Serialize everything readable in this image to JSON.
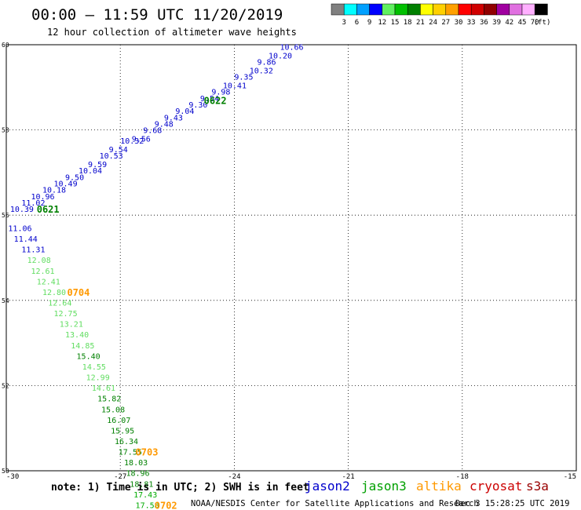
{
  "header": {
    "title": "00:00 — 11:59 UTC 11/20/2019",
    "subtitle": "12 hour collection of altimeter wave heights"
  },
  "colorbar": {
    "unit_label": "(ft)",
    "bins": [
      {
        "label": "3",
        "color": "#808080"
      },
      {
        "label": "6",
        "color": "#00ffff"
      },
      {
        "label": "9",
        "color": "#00a0ff"
      },
      {
        "label": "12",
        "color": "#0000ff"
      },
      {
        "label": "15",
        "color": "#60f060"
      },
      {
        "label": "18",
        "color": "#00c000"
      },
      {
        "label": "21",
        "color": "#008000"
      },
      {
        "label": "24",
        "color": "#ffff00"
      },
      {
        "label": "27",
        "color": "#ffd000"
      },
      {
        "label": "30",
        "color": "#ffa000"
      },
      {
        "label": "33",
        "color": "#ff0000"
      },
      {
        "label": "36",
        "color": "#d00000"
      },
      {
        "label": "39",
        "color": "#900000"
      },
      {
        "label": "42",
        "color": "#a000a0"
      },
      {
        "label": "45",
        "color": "#e070e0"
      },
      {
        "label": "70",
        "color": "#ffb0ff"
      },
      {
        "label": "",
        "color": "#000000"
      }
    ]
  },
  "footer": {
    "note": "note: 1) Time is in UTC; 2) SWH is in feet",
    "credit": "NOAA/NESDIS Center for Satellite Applications and Research",
    "timestamp": "Dec  3 15:28:25 UTC 2019",
    "legend": [
      {
        "name": "jason2",
        "color": "#0000cc"
      },
      {
        "name": "jason3",
        "color": "#00a000"
      },
      {
        "name": "altika",
        "color": "#ff9900"
      },
      {
        "name": "cryosat",
        "color": "#cc0000"
      },
      {
        "name": "s3a",
        "color": "#990000"
      }
    ]
  },
  "chart_data": {
    "type": "scatter",
    "xlim": [
      -30,
      -15
    ],
    "ylim": [
      50,
      60
    ],
    "x_ticks": [
      "-30",
      "-27",
      "-24",
      "-21",
      "-18",
      "-15"
    ],
    "y_ticks": [
      "50",
      "52",
      "54",
      "56",
      "58",
      "60"
    ],
    "grid": true,
    "colors": {
      "dark_blue": "#0000cc",
      "dark_green": "#008000",
      "mid_green": "#00aa00",
      "light_green": "#60dd60",
      "orange": "#ff9900"
    },
    "points": [
      {
        "x": -22.8,
        "y": 59.95,
        "value": "10.66",
        "color": "dark_blue"
      },
      {
        "x": -23.1,
        "y": 59.75,
        "value": "10.20",
        "color": "dark_blue"
      },
      {
        "x": -23.4,
        "y": 59.6,
        "value": "9.86",
        "color": "dark_blue"
      },
      {
        "x": -23.6,
        "y": 59.4,
        "value": "10.32",
        "color": "dark_blue"
      },
      {
        "x": -24.0,
        "y": 59.25,
        "value": "9.35",
        "color": "dark_blue"
      },
      {
        "x": -24.3,
        "y": 59.05,
        "value": "10.41",
        "color": "dark_blue"
      },
      {
        "x": -24.6,
        "y": 58.9,
        "value": "9.98",
        "color": "dark_blue"
      },
      {
        "x": -24.9,
        "y": 58.75,
        "value": "9.54",
        "color": "dark_blue"
      },
      {
        "x": -25.2,
        "y": 58.6,
        "value": "9.30",
        "color": "dark_blue"
      },
      {
        "x": -25.55,
        "y": 58.45,
        "value": "9.04",
        "color": "dark_blue"
      },
      {
        "x": -25.85,
        "y": 58.3,
        "value": "9.43",
        "color": "dark_blue"
      },
      {
        "x": -26.1,
        "y": 58.15,
        "value": "9.48",
        "color": "dark_blue"
      },
      {
        "x": -26.4,
        "y": 58.0,
        "value": "9.68",
        "color": "dark_blue"
      },
      {
        "x": -26.7,
        "y": 57.8,
        "value": "9.56",
        "color": "dark_blue"
      },
      {
        "x": -27.0,
        "y": 57.75,
        "value": "10.32",
        "color": "dark_blue"
      },
      {
        "x": -27.3,
        "y": 57.55,
        "value": "9.54",
        "color": "dark_blue"
      },
      {
        "x": -27.55,
        "y": 57.4,
        "value": "10.53",
        "color": "dark_blue"
      },
      {
        "x": -27.85,
        "y": 57.2,
        "value": "9.59",
        "color": "dark_blue"
      },
      {
        "x": -28.1,
        "y": 57.05,
        "value": "10.04",
        "color": "dark_blue"
      },
      {
        "x": -28.45,
        "y": 56.9,
        "value": "9.50",
        "color": "dark_blue"
      },
      {
        "x": -28.75,
        "y": 56.75,
        "value": "10.49",
        "color": "dark_blue"
      },
      {
        "x": -29.05,
        "y": 56.6,
        "value": "10.18",
        "color": "dark_blue"
      },
      {
        "x": -29.35,
        "y": 56.45,
        "value": "10.96",
        "color": "dark_blue"
      },
      {
        "x": -29.6,
        "y": 56.3,
        "value": "11.02",
        "color": "dark_blue"
      },
      {
        "x": -29.9,
        "y": 56.15,
        "value": "10.39",
        "color": "dark_blue"
      },
      {
        "x": -29.95,
        "y": 55.7,
        "value": "11.06",
        "color": "dark_blue"
      },
      {
        "x": -29.8,
        "y": 55.45,
        "value": "11.44",
        "color": "dark_blue"
      },
      {
        "x": -29.6,
        "y": 55.2,
        "value": "11.31",
        "color": "dark_blue"
      },
      {
        "x": -29.45,
        "y": 54.95,
        "value": "12.08",
        "color": "light_green"
      },
      {
        "x": -29.35,
        "y": 54.7,
        "value": "12.61",
        "color": "light_green"
      },
      {
        "x": -29.2,
        "y": 54.45,
        "value": "12.41",
        "color": "light_green"
      },
      {
        "x": -29.05,
        "y": 54.2,
        "value": "12.80",
        "color": "light_green"
      },
      {
        "x": -28.9,
        "y": 53.95,
        "value": "12.64",
        "color": "light_green"
      },
      {
        "x": -28.75,
        "y": 53.7,
        "value": "12.75",
        "color": "light_green"
      },
      {
        "x": -28.6,
        "y": 53.45,
        "value": "13.21",
        "color": "light_green"
      },
      {
        "x": -28.45,
        "y": 53.2,
        "value": "13.40",
        "color": "light_green"
      },
      {
        "x": -28.3,
        "y": 52.95,
        "value": "14.85",
        "color": "light_green"
      },
      {
        "x": -28.15,
        "y": 52.7,
        "value": "15.40",
        "color": "dark_green"
      },
      {
        "x": -28.0,
        "y": 52.45,
        "value": "14.55",
        "color": "light_green"
      },
      {
        "x": -27.9,
        "y": 52.2,
        "value": "12.99",
        "color": "light_green"
      },
      {
        "x": -27.75,
        "y": 51.95,
        "value": "14.61",
        "color": "light_green"
      },
      {
        "x": -27.6,
        "y": 51.7,
        "value": "15.82",
        "color": "dark_green"
      },
      {
        "x": -27.5,
        "y": 51.45,
        "value": "15.08",
        "color": "dark_green"
      },
      {
        "x": -27.35,
        "y": 51.2,
        "value": "16.07",
        "color": "dark_green"
      },
      {
        "x": -27.25,
        "y": 50.95,
        "value": "15.95",
        "color": "dark_green"
      },
      {
        "x": -27.15,
        "y": 50.7,
        "value": "16.34",
        "color": "dark_green"
      },
      {
        "x": -27.05,
        "y": 50.45,
        "value": "17.55",
        "color": "dark_green"
      },
      {
        "x": -26.9,
        "y": 50.2,
        "value": "18.03",
        "color": "dark_green"
      },
      {
        "x": -26.85,
        "y": 49.95,
        "value": "18.96",
        "color": "dark_green"
      },
      {
        "x": -26.75,
        "y": 49.7,
        "value": "18.81",
        "color": "dark_green"
      },
      {
        "x": -26.65,
        "y": 49.45,
        "value": "17.43",
        "color": "mid_green"
      },
      {
        "x": -26.6,
        "y": 49.2,
        "value": "17.58",
        "color": "mid_green"
      }
    ],
    "time_labels": [
      {
        "x": -24.8,
        "y": 58.7,
        "text": "0622",
        "color": "dark_green"
      },
      {
        "x": -29.2,
        "y": 56.15,
        "text": "0621",
        "color": "dark_green"
      },
      {
        "x": -28.4,
        "y": 54.2,
        "text": "0704",
        "color": "orange"
      },
      {
        "x": -26.6,
        "y": 50.45,
        "text": "0703",
        "color": "orange"
      },
      {
        "x": -26.1,
        "y": 49.2,
        "text": "0702",
        "color": "orange"
      }
    ]
  }
}
